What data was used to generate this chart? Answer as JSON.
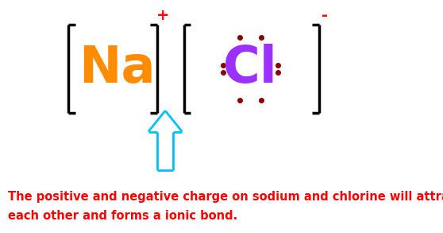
{
  "bg_color": "#ffffff",
  "na_text": "Na",
  "na_color": "#FF8C00",
  "cl_text": "Cl",
  "cl_color": "#9B30FF",
  "plus_charge": "+",
  "minus_charge": "-",
  "charge_color": "#FF0000",
  "bracket_color": "#000000",
  "dot_color": "#8B0000",
  "arrow_color": "#00BFFF",
  "caption_line1": "The positive and negative charge on sodium and chlorine will attract",
  "caption_line2": "each other and forms a ionic bond.",
  "caption_color": "#FF0000",
  "caption_fontsize": 10.5,
  "na_fontsize": 46,
  "cl_fontsize": 46,
  "charge_fontsize": 14,
  "fig_width": 5.58,
  "fig_height": 2.93,
  "dpi": 100
}
